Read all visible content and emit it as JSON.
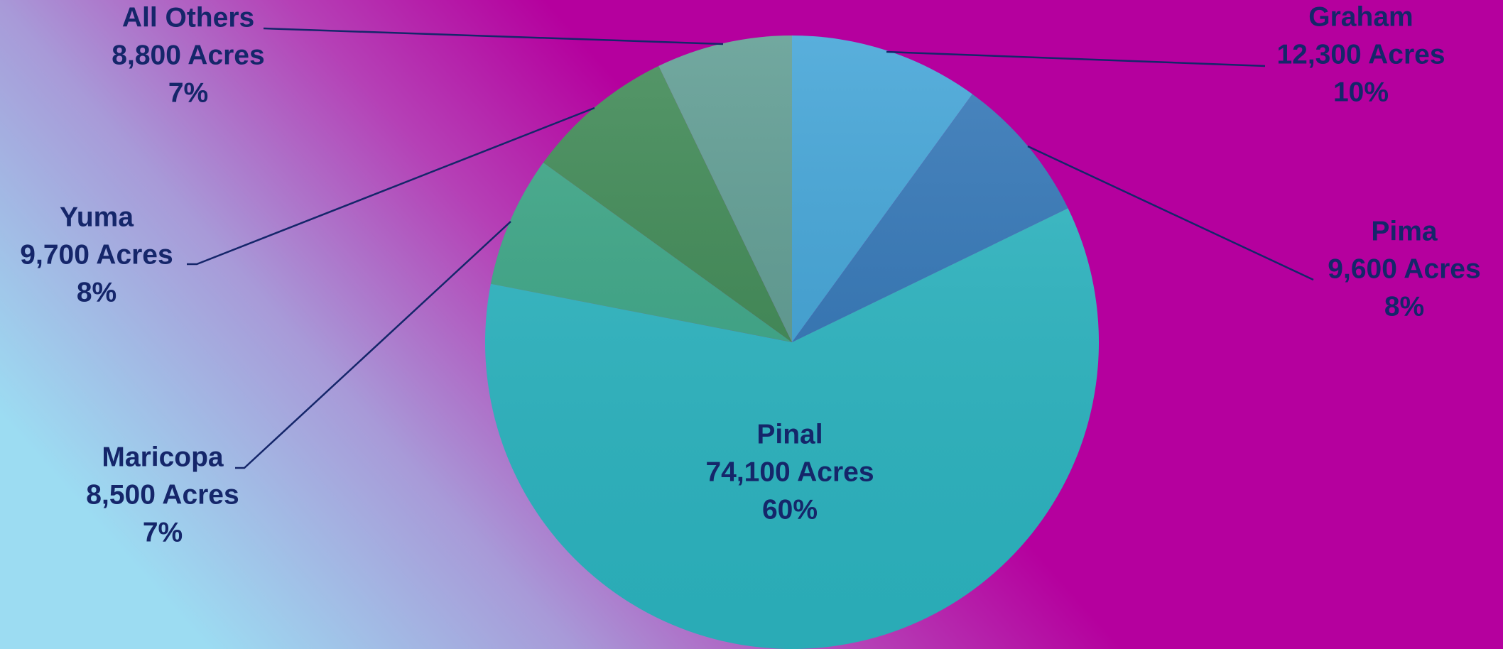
{
  "chart_data": {
    "type": "pie",
    "categories": [
      "Graham",
      "Pima",
      "Pinal",
      "Maricopa",
      "Yuma",
      "All Others"
    ],
    "values": [
      12300,
      9600,
      74100,
      8500,
      9700,
      8800
    ],
    "value_labels": [
      "12,300 Acres",
      "9,600 Acres",
      "74,100 Acres",
      "8,500 Acres",
      "9,700 Acres",
      "8,800 Acres"
    ],
    "percents": [
      10,
      8,
      60,
      7,
      8,
      7
    ],
    "percent_labels": [
      "10%",
      "8%",
      "60%",
      "7%",
      "8%",
      "7%"
    ],
    "colors": [
      "#3ea2d6",
      "#2f74b6",
      "#2cb6c2",
      "#39a585",
      "#3b8752",
      "#5b9a90"
    ]
  }
}
